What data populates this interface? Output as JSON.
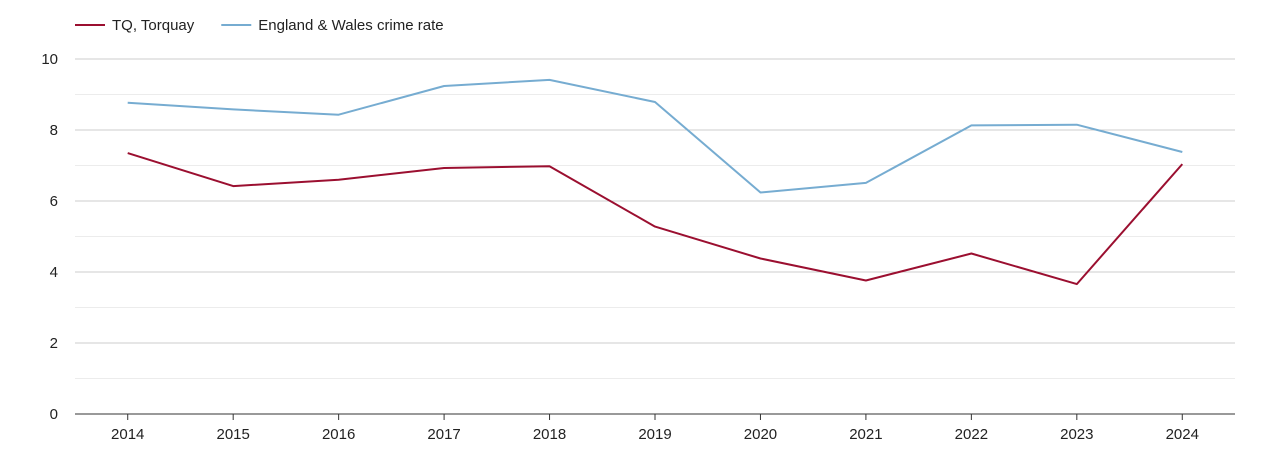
{
  "chart_data": {
    "type": "line",
    "title": "",
    "xlabel": "",
    "ylabel": "",
    "categories": [
      "2014",
      "2015",
      "2016",
      "2017",
      "2018",
      "2019",
      "2020",
      "2021",
      "2022",
      "2023",
      "2024"
    ],
    "ylim": [
      0,
      10
    ],
    "yticks": [
      0,
      2,
      4,
      6,
      8,
      10
    ],
    "grid": true,
    "legend_position": "top-left",
    "series": [
      {
        "name": "TQ, Torquay",
        "color": "#9b0f30",
        "values": [
          7.35,
          6.42,
          6.6,
          6.93,
          6.98,
          5.28,
          4.38,
          3.76,
          4.52,
          3.66,
          7.04
        ]
      },
      {
        "name": "England & Wales crime rate",
        "color": "#76acd1",
        "values": [
          8.77,
          8.58,
          8.43,
          9.24,
          9.41,
          8.79,
          6.24,
          6.51,
          8.13,
          8.15,
          7.38
        ]
      }
    ]
  }
}
